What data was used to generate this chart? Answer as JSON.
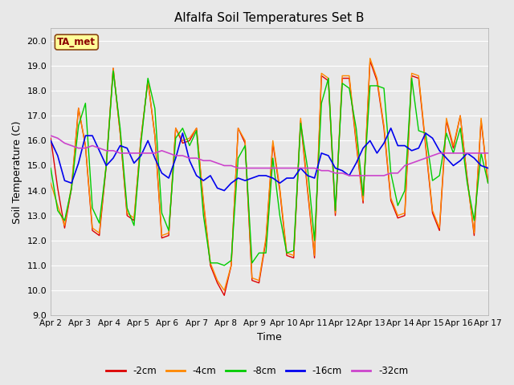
{
  "title": "Alfalfa Soil Temperatures Set B",
  "xlabel": "Time",
  "ylabel": "Soil Temperature (C)",
  "ylim": [
    9.0,
    20.5
  ],
  "yticks": [
    9.0,
    10.0,
    11.0,
    12.0,
    13.0,
    14.0,
    15.0,
    16.0,
    17.0,
    18.0,
    19.0,
    20.0
  ],
  "background_color": "#e8e8e8",
  "plot_bg_color": "#e8e8e8",
  "grid_color": "#ffffff",
  "annotation_text": "TA_met",
  "annotation_color": "#8b0000",
  "annotation_bg": "#ffff99",
  "annotation_border": "#8b4513",
  "series_colors": {
    "-2cm": "#dd0000",
    "-4cm": "#ff8800",
    "-8cm": "#00cc00",
    "-16cm": "#0000ee",
    "-32cm": "#cc44cc"
  },
  "x_tick_labels": [
    "Apr 2",
    "Apr 3",
    "Apr 4",
    "Apr 5",
    "Apr 6",
    "Apr 7",
    "Apr 8",
    "Apr 9",
    "Apr 10",
    "Apr 11",
    "Apr 12",
    "Apr 13",
    "Apr 14",
    "Apr 15",
    "Apr 16",
    "Apr 17"
  ],
  "data_2cm": [
    16.1,
    14.1,
    12.5,
    14.1,
    17.3,
    15.8,
    12.4,
    12.2,
    15.0,
    18.9,
    16.3,
    13.0,
    12.8,
    16.1,
    18.4,
    16.2,
    12.1,
    12.2,
    16.5,
    15.9,
    16.0,
    16.5,
    13.5,
    11.0,
    10.3,
    9.8,
    11.0,
    16.5,
    15.9,
    10.4,
    10.3,
    12.0,
    15.9,
    14.0,
    11.4,
    11.3,
    16.8,
    14.0,
    11.3,
    18.6,
    18.4,
    13.0,
    18.5,
    18.5,
    15.9,
    13.5,
    19.2,
    18.4,
    16.5,
    13.6,
    12.9,
    13.0,
    18.6,
    18.5,
    15.8,
    13.1,
    12.4,
    16.8,
    15.7,
    17.0,
    14.5,
    12.2,
    16.8,
    14.3
  ],
  "data_4cm": [
    14.3,
    13.4,
    12.6,
    14.2,
    17.3,
    15.8,
    12.5,
    12.3,
    15.1,
    18.9,
    16.3,
    13.1,
    12.9,
    16.1,
    18.4,
    16.2,
    12.2,
    12.3,
    16.5,
    16.0,
    16.1,
    16.5,
    13.6,
    11.1,
    10.4,
    10.0,
    11.0,
    16.5,
    16.0,
    10.5,
    10.4,
    12.1,
    16.0,
    14.1,
    11.5,
    11.4,
    16.9,
    14.1,
    11.4,
    18.7,
    18.5,
    13.1,
    18.6,
    18.6,
    16.0,
    13.6,
    19.3,
    18.5,
    16.6,
    13.7,
    13.0,
    13.1,
    18.7,
    18.6,
    15.9,
    13.2,
    12.5,
    16.9,
    15.8,
    17.0,
    14.4,
    12.3,
    16.9,
    14.3
  ],
  "data_8cm": [
    14.9,
    13.2,
    12.8,
    14.1,
    16.6,
    17.5,
    13.3,
    12.7,
    15.0,
    18.8,
    16.5,
    13.3,
    12.6,
    15.9,
    18.5,
    17.3,
    13.1,
    12.4,
    16.1,
    16.5,
    15.8,
    16.4,
    13.0,
    11.1,
    11.1,
    11.0,
    11.2,
    15.3,
    15.8,
    11.1,
    11.5,
    11.5,
    15.3,
    13.0,
    11.5,
    11.6,
    16.7,
    14.9,
    12.0,
    17.5,
    18.5,
    13.2,
    18.3,
    18.1,
    16.5,
    13.8,
    18.2,
    18.2,
    18.1,
    14.7,
    13.4,
    14.0,
    18.5,
    16.4,
    16.3,
    14.4,
    14.6,
    16.3,
    15.5,
    16.5,
    14.3,
    12.8,
    15.5,
    14.3
  ],
  "data_16cm": [
    16.0,
    15.4,
    14.4,
    14.3,
    15.1,
    16.2,
    16.2,
    15.6,
    15.0,
    15.3,
    15.8,
    15.7,
    15.1,
    15.4,
    16.0,
    15.3,
    14.7,
    14.5,
    15.3,
    16.3,
    15.2,
    14.6,
    14.4,
    14.6,
    14.1,
    14.0,
    14.3,
    14.5,
    14.4,
    14.5,
    14.6,
    14.6,
    14.5,
    14.3,
    14.5,
    14.5,
    14.9,
    14.6,
    14.5,
    15.5,
    15.4,
    14.9,
    14.8,
    14.6,
    15.1,
    15.7,
    16.0,
    15.5,
    15.9,
    16.5,
    15.8,
    15.8,
    15.6,
    15.7,
    16.3,
    16.1,
    15.6,
    15.3,
    15.0,
    15.2,
    15.5,
    15.3,
    15.0,
    14.9
  ],
  "data_32cm": [
    16.2,
    16.1,
    15.9,
    15.8,
    15.7,
    15.7,
    15.8,
    15.7,
    15.6,
    15.6,
    15.5,
    15.5,
    15.5,
    15.5,
    15.5,
    15.5,
    15.6,
    15.5,
    15.4,
    15.4,
    15.3,
    15.3,
    15.2,
    15.2,
    15.1,
    15.0,
    15.0,
    14.9,
    14.9,
    14.9,
    14.9,
    14.9,
    14.9,
    14.9,
    14.9,
    14.9,
    14.9,
    14.9,
    14.9,
    14.8,
    14.8,
    14.7,
    14.7,
    14.6,
    14.6,
    14.6,
    14.6,
    14.6,
    14.6,
    14.7,
    14.7,
    15.0,
    15.1,
    15.2,
    15.3,
    15.4,
    15.5,
    15.5,
    15.5,
    15.5,
    15.5,
    15.5,
    15.5,
    15.5
  ]
}
